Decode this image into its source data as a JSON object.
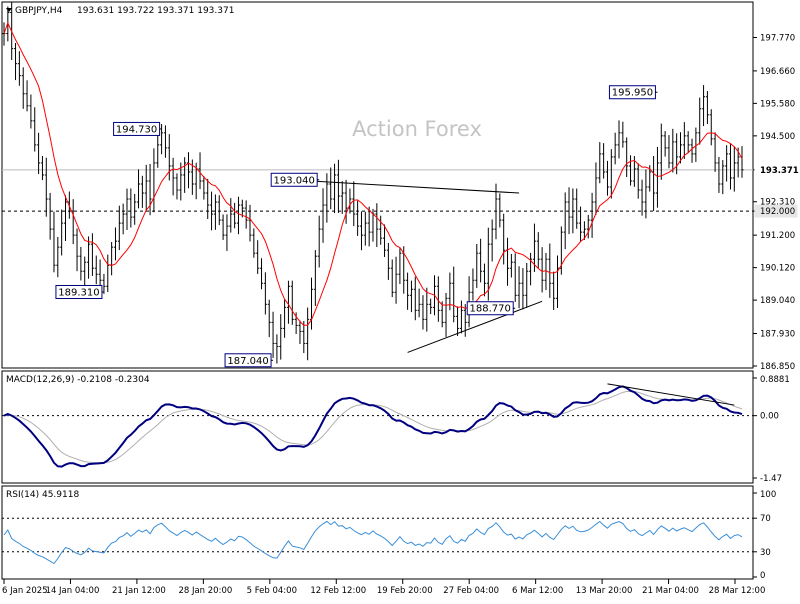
{
  "header": {
    "symbol": "GBPJPY,H4",
    "ohlc": "193.631 193.722 193.371 193.371"
  },
  "watermark": "Action Forex",
  "colors": {
    "price": "#000000",
    "ma": "#ff0000",
    "macd_main": "#000080",
    "macd_signal": "#b0b0b0",
    "rsi": "#3a8fd8",
    "grid": "#000000",
    "tag_border": "#000080"
  },
  "chart_data": [
    {
      "type": "bar",
      "name": "price",
      "ylim": [
        186.85,
        198.85
      ],
      "yticks": [
        "197.770",
        "196.660",
        "195.580",
        "194.500",
        "193.371",
        "192.310",
        "192.000",
        "191.200",
        "190.120",
        "189.040",
        "187.930",
        "186.850"
      ],
      "current_price": 193.371,
      "support_level": 192.0,
      "annotations": [
        {
          "label": "195.950",
          "x_index": 170,
          "value": 195.95,
          "side": "left"
        },
        {
          "label": "194.730",
          "x_index": 41,
          "value": 194.73,
          "side": "left"
        },
        {
          "label": "193.040",
          "x_index": 82,
          "value": 193.04,
          "side": "left"
        },
        {
          "label": "189.310",
          "x_index": 26,
          "value": 189.31,
          "side": "left"
        },
        {
          "label": "188.770",
          "x_index": 133,
          "value": 188.77,
          "side": "left"
        },
        {
          "label": "187.040",
          "x_index": 70,
          "value": 187.04,
          "side": "left"
        }
      ],
      "trendlines": [
        {
          "from": {
            "x_index": 80,
            "value": 193.0
          },
          "to": {
            "x_index": 134,
            "value": 192.6
          }
        },
        {
          "from": {
            "x_index": 105,
            "value": 187.3
          },
          "to": {
            "x_index": 140,
            "value": 189.0
          }
        }
      ],
      "closes": [
        197.9,
        198.6,
        197.4,
        196.9,
        196.5,
        195.9,
        195.5,
        195.0,
        194.2,
        193.6,
        193.2,
        192.4,
        191.4,
        190.2,
        190.8,
        191.6,
        192.3,
        192.0,
        191.2,
        190.5,
        190.0,
        190.3,
        190.9,
        190.1,
        189.9,
        189.7,
        189.5,
        190.2,
        190.8,
        191.0,
        191.6,
        191.9,
        192.4,
        191.8,
        192.3,
        192.9,
        192.6,
        193.0,
        192.4,
        193.6,
        194.2,
        194.6,
        194.1,
        193.5,
        193.1,
        192.7,
        193.2,
        193.6,
        193.3,
        192.9,
        193.4,
        193.0,
        192.6,
        192.2,
        191.9,
        192.3,
        191.7,
        191.2,
        191.5,
        191.9,
        191.6,
        192.2,
        192.1,
        191.7,
        191.2,
        190.6,
        190.1,
        189.6,
        188.9,
        188.3,
        187.6,
        187.5,
        188.1,
        188.8,
        189.5,
        188.4,
        188.2,
        188.0,
        187.6,
        188.4,
        189.4,
        190.5,
        191.4,
        192.2,
        192.9,
        192.4,
        193.2,
        192.5,
        192.6,
        192.1,
        192.4,
        191.9,
        191.5,
        191.2,
        191.6,
        191.3,
        191.9,
        191.4,
        191.1,
        190.7,
        190.1,
        189.3,
        189.9,
        190.6,
        189.7,
        189.2,
        189.4,
        188.7,
        188.9,
        188.4,
        188.9,
        188.8,
        189.5,
        188.7,
        188.3,
        189.1,
        189.6,
        188.5,
        188.1,
        188.7,
        188.3,
        189.3,
        189.7,
        190.6,
        190.0,
        189.6,
        190.9,
        191.4,
        192.4,
        191.7,
        190.7,
        190.1,
        190.3,
        189.2,
        189.6,
        189.2,
        190.0,
        190.4,
        191.0,
        190.4,
        189.7,
        190.4,
        189.6,
        189.1,
        190.1,
        191.3,
        192.3,
        191.8,
        192.4,
        191.6,
        191.3,
        191.4,
        191.7,
        192.3,
        193.1,
        193.9,
        193.3,
        192.8,
        193.8,
        194.2,
        194.6,
        194.3,
        193.5,
        193.0,
        193.4,
        192.7,
        192.3,
        192.8,
        193.3,
        192.6,
        193.6,
        194.5,
        194.1,
        193.6,
        194.3,
        193.8,
        194.2,
        194.5,
        194.2,
        193.9,
        194.6,
        195.4,
        195.8,
        195.2,
        194.4,
        193.6,
        192.9,
        193.5,
        193.9,
        193.1,
        193.6,
        193.8,
        193.371
      ]
    },
    {
      "type": "line",
      "name": "MACD(12,26,9)",
      "values_text": "-0.2108 -0.2304",
      "ylim": [
        -1.47,
        0.8881
      ],
      "yticks": [
        "0.8881",
        "0.00",
        "-1.47"
      ],
      "trendline": {
        "from": {
          "x_index": 157,
          "value": 0.75
        },
        "to": {
          "x_index": 190,
          "value": 0.25
        }
      }
    },
    {
      "type": "line",
      "name": "RSI(14)",
      "value_text": "45.9118",
      "ylim": [
        0,
        100
      ],
      "yticks": [
        "100",
        "70",
        "30",
        "0"
      ],
      "levels": [
        70,
        30
      ]
    }
  ],
  "xticks": [
    "6 Jan 2025",
    "14 Jan 04:00",
    "21 Jan 12:00",
    "28 Jan 20:00",
    "5 Feb 04:00",
    "12 Feb 12:00",
    "19 Feb 20:00",
    "27 Feb 04:00",
    "6 Mar 12:00",
    "13 Mar 20:00",
    "21 Mar 04:00",
    "28 Mar 12:00"
  ]
}
